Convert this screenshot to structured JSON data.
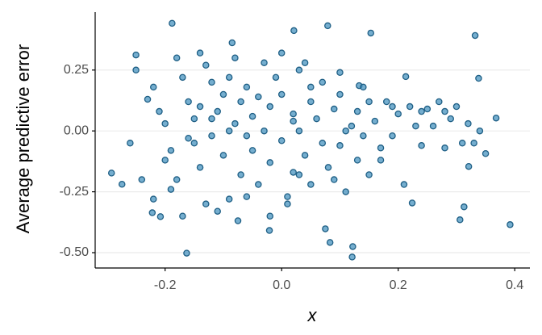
{
  "chart_data": {
    "type": "scatter",
    "x_label": "x",
    "y_label": "Average predictive error",
    "color": "#3b8bba",
    "x": [
      -0.188,
      0.079,
      0.153,
      0.332,
      0.021,
      -0.085,
      -0.25,
      -0.292,
      -0.274,
      -0.163,
      -0.021,
      0.083,
      0.122,
      0.121,
      0.392,
      0.313,
      0.306,
      0.224,
      0.338,
      0.368,
      0.35,
      0.321,
      0.213,
      0.133,
      -0.222,
      -0.208,
      -0.075,
      0.075,
      -0.25,
      -0.23,
      -0.22,
      -0.21,
      -0.2,
      -0.19,
      -0.2,
      -0.18,
      -0.19,
      -0.17,
      -0.16,
      -0.15,
      -0.15,
      -0.14,
      -0.14,
      -0.13,
      -0.12,
      -0.12,
      -0.11,
      -0.1,
      -0.1,
      -0.09,
      -0.09,
      -0.08,
      -0.07,
      -0.07,
      -0.06,
      -0.05,
      -0.05,
      -0.04,
      -0.03,
      -0.03,
      -0.02,
      -0.02,
      -0.01,
      0,
      0,
      0.01,
      0.02,
      0.02,
      0.03,
      0.03,
      0.04,
      0.05,
      0.05,
      0.06,
      0.07,
      0.07,
      0.08,
      0.09,
      0.1,
      0.1,
      0.11,
      0.12,
      0.13,
      0.13,
      0.14,
      0.15,
      0.15,
      0.16,
      0.17,
      0.18,
      0.19,
      0.2,
      0.21,
      0.22,
      0.23,
      0.24,
      0.25,
      0.26,
      0.27,
      0.28,
      0.29,
      0.3,
      0.31,
      0.32,
      0.33,
      0.34,
      -0.26,
      -0.24,
      -0.22,
      -0.17,
      -0.13,
      -0.11,
      -0.06,
      -0.02,
      0.01,
      0.03,
      -0.18,
      -0.14,
      -0.08,
      0,
      0.04,
      0.1,
      0.14,
      0.09,
      0.17,
      0.05,
      -0.04,
      -0.16,
      -0.12,
      -0.09,
      -0.06,
      0.02,
      0.11,
      0.24,
      0.19,
      0.28
    ],
    "y": [
      0.442,
      0.432,
      0.402,
      0.392,
      0.412,
      0.362,
      0.312,
      -0.173,
      -0.219,
      -0.502,
      -0.409,
      -0.458,
      -0.475,
      -0.518,
      -0.385,
      -0.312,
      -0.365,
      -0.296,
      0.216,
      0.053,
      -0.093,
      -0.146,
      0.223,
      0.186,
      -0.336,
      -0.352,
      -0.369,
      -0.402,
      0.25,
      0.13,
      0.18,
      0.08,
      0.03,
      -0.08,
      -0.12,
      -0.2,
      -0.24,
      0.22,
      0.12,
      0.05,
      -0.05,
      -0.15,
      0.1,
      0.27,
      0.2,
      -0.02,
      0.08,
      0.15,
      -0.1,
      0.22,
      -0.28,
      0.03,
      0.12,
      -0.18,
      0.18,
      0.06,
      -0.08,
      -0.22,
      0.28,
      0,
      0.1,
      -0.13,
      0.22,
      -0.04,
      0.15,
      -0.3,
      0.07,
      -0.17,
      0.25,
      0,
      -0.1,
      0.12,
      -0.22,
      0.05,
      -0.05,
      0.2,
      -0.15,
      0.09,
      -0.06,
      0.15,
      -0.25,
      0.02,
      0.08,
      -0.12,
      -0.02,
      0.12,
      -0.18,
      0.04,
      -0.07,
      0.12,
      -0.02,
      0.07,
      -0.22,
      0.1,
      0.02,
      -0.06,
      0.09,
      0.02,
      0.12,
      -0.07,
      0.05,
      0.1,
      -0.05,
      0.03,
      -0.05,
      0,
      -0.05,
      -0.2,
      -0.28,
      -0.35,
      -0.3,
      -0.33,
      -0.27,
      -0.35,
      -0.27,
      -0.18,
      0.3,
      0.32,
      0.3,
      0.32,
      0.28,
      0.24,
      0.18,
      -0.2,
      -0.12,
      0.18,
      0.14,
      -0.03,
      0.05,
      0,
      -0.02,
      0.04,
      0,
      0.08,
      0.1,
      0.08
    ],
    "xlim": [
      -0.32,
      0.426
    ],
    "ylim": [
      -0.563,
      0.488
    ],
    "xticks": [
      -0.2,
      {
        "value": 0,
        "label": "0.0"
      },
      0.2,
      0.4
    ],
    "yticks": [
      {
        "value": -0.5,
        "label": "-0.50"
      },
      -0.25,
      {
        "value": 0,
        "label": "0.00"
      },
      0.25
    ],
    "grid": true
  }
}
